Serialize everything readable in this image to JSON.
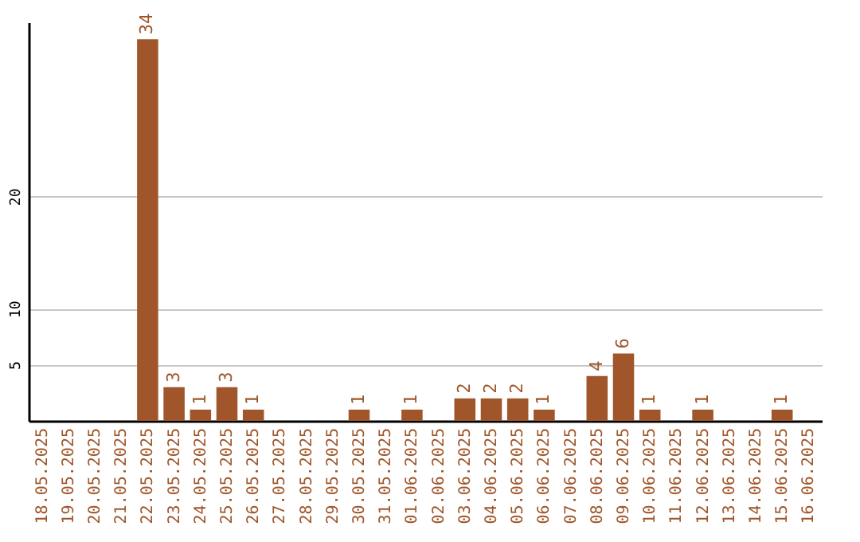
{
  "chart_data": {
    "type": "bar",
    "categories": [
      "18.05.2025",
      "19.05.2025",
      "20.05.2025",
      "21.05.2025",
      "22.05.2025",
      "23.05.2025",
      "24.05.2025",
      "25.05.2025",
      "26.05.2025",
      "27.05.2025",
      "28.05.2025",
      "29.05.2025",
      "30.05.2025",
      "31.05.2025",
      "01.06.2025",
      "02.06.2025",
      "03.06.2025",
      "04.06.2025",
      "05.06.2025",
      "06.06.2025",
      "07.06.2025",
      "08.06.2025",
      "09.06.2025",
      "10.06.2025",
      "11.06.2025",
      "12.06.2025",
      "13.06.2025",
      "14.06.2025",
      "15.06.2025",
      "16.06.2025"
    ],
    "values": [
      0,
      0,
      0,
      0,
      34,
      3,
      1,
      3,
      1,
      0,
      0,
      0,
      1,
      0,
      1,
      0,
      2,
      2,
      2,
      1,
      0,
      4,
      6,
      1,
      0,
      1,
      0,
      0,
      1,
      0
    ],
    "value_labels": [
      null,
      null,
      null,
      null,
      "34",
      "3",
      "1",
      "3",
      "1",
      null,
      null,
      null,
      "1",
      null,
      "1",
      null,
      "2",
      "2",
      "2",
      "1",
      null,
      "4",
      "6",
      "1",
      null,
      "1",
      null,
      null,
      "1",
      null
    ],
    "color": "#a0562a",
    "ylim": [
      0,
      35.5
    ],
    "yticks": [
      5,
      10,
      20
    ],
    "grid": "y"
  }
}
